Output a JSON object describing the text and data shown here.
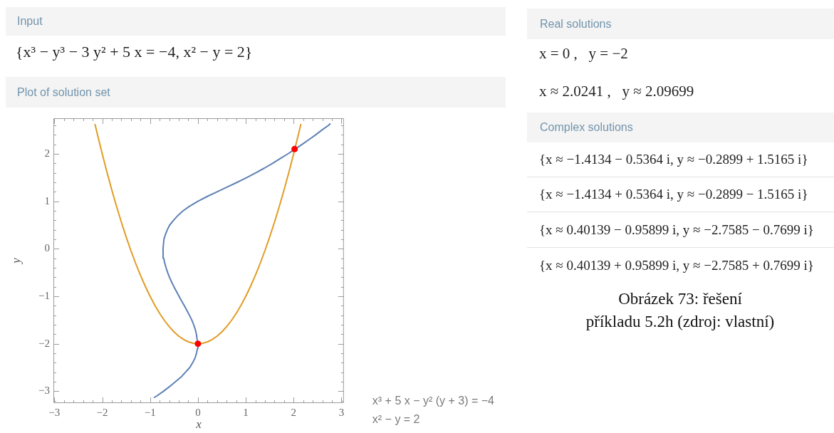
{
  "chart_data": {
    "type": "line",
    "title": "Plot of solution set",
    "xlabel": "x",
    "ylabel": "y",
    "xlim": [
      -3.02,
      3.05
    ],
    "ylim": [
      -3.25,
      2.75
    ],
    "xticks": [
      -3,
      {
        "value": -2.8,
        "label": null
      },
      {
        "value": -2.6,
        "label": null
      },
      {
        "value": -2.4,
        "label": null
      },
      {
        "value": -2.2,
        "label": null
      },
      -2,
      {
        "value": -1.8,
        "label": null
      },
      {
        "value": -1.6,
        "label": null
      },
      {
        "value": -1.4,
        "label": null
      },
      {
        "value": -1.2,
        "label": null
      },
      -1,
      {
        "value": -0.8,
        "label": null
      },
      {
        "value": -0.6,
        "label": null
      },
      {
        "value": -0.4,
        "label": null
      },
      {
        "value": -0.2,
        "label": null
      },
      0,
      {
        "value": 0.2,
        "label": null
      },
      {
        "value": 0.4,
        "label": null
      },
      {
        "value": 0.6,
        "label": null
      },
      {
        "value": 0.8,
        "label": null
      },
      1,
      {
        "value": 1.2,
        "label": null
      },
      {
        "value": 1.4,
        "label": null
      },
      {
        "value": 1.6,
        "label": null
      },
      {
        "value": 1.8,
        "label": null
      },
      2,
      {
        "value": 2.2,
        "label": null
      },
      {
        "value": 2.4,
        "label": null
      },
      {
        "value": 2.6,
        "label": null
      },
      {
        "value": 2.8,
        "label": null
      },
      3
    ],
    "yticks": [
      {
        "value": -3.2,
        "label": null
      },
      -3,
      {
        "value": -2.8,
        "label": null
      },
      {
        "value": -2.6,
        "label": null
      },
      {
        "value": -2.4,
        "label": null
      },
      {
        "value": -2.2,
        "label": null
      },
      -2,
      {
        "value": -1.8,
        "label": null
      },
      {
        "value": -1.6,
        "label": null
      },
      {
        "value": -1.4,
        "label": null
      },
      {
        "value": -1.2,
        "label": null
      },
      -1,
      {
        "value": -0.8,
        "label": null
      },
      {
        "value": -0.6,
        "label": null
      },
      {
        "value": -0.4,
        "label": null
      },
      {
        "value": -0.2,
        "label": null
      },
      0,
      {
        "value": 0.2,
        "label": null
      },
      {
        "value": 0.4,
        "label": null
      },
      {
        "value": 0.6,
        "label": null
      },
      {
        "value": 0.8,
        "label": null
      },
      1,
      {
        "value": 1.2,
        "label": null
      },
      {
        "value": 1.4,
        "label": null
      },
      {
        "value": 1.6,
        "label": null
      },
      {
        "value": 1.8,
        "label": null
      },
      2,
      {
        "value": 2.2,
        "label": null
      },
      {
        "value": 2.4,
        "label": null
      },
      {
        "value": 2.6,
        "label": null
      }
    ],
    "legend": "bottom right",
    "series": [
      {
        "name": "x³ + 5 x − y² (y + 3) = −4",
        "color": "#5e81b5",
        "x": [
          -0.91,
          -0.86,
          -0.72,
          -0.59,
          -0.47,
          -0.35,
          -0.26,
          -0.17,
          -0.11,
          -0.06,
          -0.03,
          -0.01,
          0,
          -0.018,
          -0.032,
          -0.055,
          -0.088,
          -0.128,
          -0.178,
          -0.23,
          -0.284,
          -0.34,
          -0.395,
          -0.449,
          -0.501,
          -0.55,
          -0.594,
          -0.633,
          -0.666,
          -0.694,
          -0.714,
          -0.727,
          -0.729,
          -0.72,
          -0.71,
          -0.68,
          -0.64,
          -0.59,
          -0.51,
          -0.42,
          -0.31,
          -0.17,
          0,
          0.19,
          0.4,
          0.61,
          0.82,
          1.02,
          1.21,
          1.39,
          1.56,
          1.72,
          1.88,
          2.03,
          2.18,
          2.32,
          2.46,
          2.59,
          2.73,
          2.76
        ],
        "values": [
          -3.13,
          -3.1,
          -3,
          -2.9,
          -2.8,
          -2.7,
          -2.6,
          -2.5,
          -2.4,
          -2.3,
          -2.2,
          -2.1,
          -2,
          -1.9,
          -1.8,
          -1.7,
          -1.6,
          -1.5,
          -1.4,
          -1.3,
          -1.2,
          -1.1,
          -1,
          -0.9,
          -0.8,
          -0.7,
          -0.6,
          -0.5,
          -0.4,
          -0.3,
          -0.2,
          -0.1,
          0,
          0.1,
          0.2,
          0.3,
          0.4,
          0.5,
          0.6,
          0.7,
          0.8,
          0.9,
          1,
          1.1,
          1.2,
          1.3,
          1.4,
          1.5,
          1.6,
          1.7,
          1.8,
          1.9,
          2,
          2.1,
          2.2,
          2.3,
          2.4,
          2.5,
          2.6,
          2.63
        ]
      },
      {
        "name": "x² − y = 2",
        "color": "#e19c24",
        "x": [
          -2.15,
          -2.1,
          -2,
          -1.9,
          -1.8,
          -1.7,
          -1.6,
          -1.5,
          -1.4,
          -1.3,
          -1.2,
          -1.1,
          -1,
          -0.9,
          -0.8,
          -0.7,
          -0.6,
          -0.5,
          -0.4,
          -0.3,
          -0.2,
          -0.1,
          0,
          0.1,
          0.2,
          0.3,
          0.4,
          0.5,
          0.6,
          0.7,
          0.8,
          0.9,
          1,
          1.1,
          1.2,
          1.3,
          1.4,
          1.5,
          1.6,
          1.7,
          1.8,
          1.9,
          2,
          2.1,
          2.15
        ],
        "values": [
          2.62,
          2.41,
          2,
          1.61,
          1.24,
          0.89,
          0.56,
          0.25,
          -0.04,
          -0.31,
          -0.56,
          -0.79,
          -1,
          -1.19,
          -1.36,
          -1.51,
          -1.64,
          -1.75,
          -1.84,
          -1.91,
          -1.96,
          -1.99,
          -2,
          -1.99,
          -1.96,
          -1.91,
          -1.84,
          -1.75,
          -1.64,
          -1.51,
          -1.36,
          -1.19,
          -1,
          -0.79,
          -0.56,
          -0.31,
          -0.04,
          0.25,
          0.56,
          0.89,
          1.24,
          1.61,
          2,
          2.41,
          2.62
        ]
      },
      {
        "type": "scatter",
        "marker": "circle",
        "color": "#ff0000",
        "x": [
          0,
          2.02
        ],
        "values": [
          -2,
          2.1
        ]
      }
    ],
    "annotations": [
      "Input",
      "{x³ − y³ − 3 y² + 5 x = −4, x² − y = 2}",
      "Real solutions",
      "x = 0 ,   y = −2",
      "x ≈ 2.0241 ,   y ≈ 2.09699",
      "Complex solutions",
      "{x ≈ −1.4134 − 0.5364 i, y ≈ −0.2899 + 1.5165 i}",
      "{x ≈ −1.4134 + 0.5364 i, y ≈ −0.2899 − 1.5165 i}",
      "{x ≈ 0.40139 − 0.95899 i, y ≈ −2.7585 − 0.7699 i}",
      "{x ≈ 0.40139 + 0.95899 i, y ≈ −2.7585 + 0.7699 i}",
      "Obrázek 73: řešení\npříkladu 5.2h (zdroj: vlastní)"
    ]
  }
}
